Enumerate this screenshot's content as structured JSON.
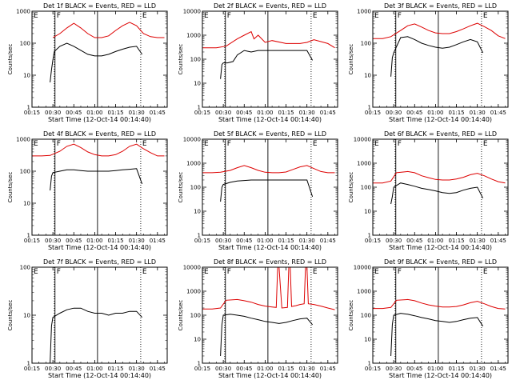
{
  "chart_data": [
    {
      "type": "line",
      "title": "Det 1f BLACK = Events, RED = LLD",
      "xlabel": "Start Time (12-Oct-14 00:14:40)",
      "ylabel": "Counts/sec",
      "yscale": "log",
      "ylim": [
        1,
        1000
      ],
      "yticks": [
        "1",
        "10",
        "100",
        "1000"
      ],
      "xlim": [
        "00:15",
        "01:52"
      ],
      "xticks": [
        "00:15",
        "00:30",
        "00:45",
        "01:00",
        "01:15",
        "01:30",
        "01:45"
      ],
      "markers": [
        "E",
        "F",
        "E"
      ],
      "series": [
        {
          "color": "#000000",
          "x": [
            "00:28",
            "00:29",
            "00:30",
            "00:31",
            "00:35",
            "00:40",
            "00:45",
            "00:50",
            "00:55",
            "01:00",
            "01:05",
            "01:10",
            "01:15",
            "01:20",
            "01:25",
            "01:30",
            "01:34"
          ],
          "y": [
            6,
            15,
            30,
            55,
            80,
            100,
            80,
            60,
            45,
            40,
            40,
            45,
            55,
            65,
            75,
            80,
            45
          ]
        },
        {
          "color": "#dd0000",
          "x": [
            "00:30",
            "00:35",
            "00:40",
            "00:45",
            "00:50",
            "00:55",
            "01:00",
            "01:05",
            "01:10",
            "01:15",
            "01:20",
            "01:25",
            "01:30",
            "01:35",
            "01:40",
            "01:45",
            "01:50"
          ],
          "y": [
            150,
            200,
            300,
            420,
            300,
            200,
            150,
            150,
            170,
            250,
            350,
            450,
            350,
            200,
            160,
            150,
            150
          ]
        }
      ]
    },
    {
      "type": "line",
      "title": "Det 2f BLACK = Events, RED = LLD",
      "xlabel": "Start Time (12-Oct-14 00:14:40)",
      "ylabel": "Counts/sec",
      "yscale": "log",
      "ylim": [
        1,
        10000
      ],
      "yticks": [
        "1",
        "10",
        "100",
        "1000",
        "10000"
      ],
      "xlim": [
        "00:15",
        "01:52"
      ],
      "xticks": [
        "00:15",
        "00:30",
        "00:45",
        "01:00",
        "01:15",
        "01:30",
        "01:45"
      ],
      "markers": [
        "E",
        "F",
        "E"
      ],
      "series": [
        {
          "color": "#000000",
          "x": [
            "00:28",
            "00:29",
            "00:30",
            "00:33",
            "00:37",
            "00:40",
            "00:45",
            "00:50",
            "00:55",
            "01:00",
            "01:10",
            "01:20",
            "01:25",
            "01:30",
            "01:34"
          ],
          "y": [
            15,
            60,
            70,
            70,
            80,
            150,
            230,
            200,
            230,
            230,
            230,
            230,
            230,
            230,
            90
          ]
        },
        {
          "color": "#dd0000",
          "x": [
            "00:15",
            "00:25",
            "00:32",
            "00:40",
            "00:45",
            "00:50",
            "00:52",
            "00:55",
            "01:00",
            "01:05",
            "01:15",
            "01:25",
            "01:30",
            "01:35",
            "01:45",
            "01:50"
          ],
          "y": [
            300,
            300,
            350,
            700,
            1000,
            1400,
            700,
            1000,
            500,
            600,
            450,
            450,
            500,
            650,
            450,
            300
          ]
        }
      ]
    },
    {
      "type": "line",
      "title": "Det 3f BLACK = Events, RED = LLD",
      "xlabel": "Start Time (12-Oct-14 00:14:40)",
      "ylabel": "Counts/sec",
      "yscale": "log",
      "ylim": [
        1,
        1000
      ],
      "yticks": [
        "1",
        "10",
        "100",
        "1000"
      ],
      "xlim": [
        "00:15",
        "01:52"
      ],
      "xticks": [
        "00:15",
        "00:30",
        "00:45",
        "01:00",
        "01:15",
        "01:30",
        "01:45"
      ],
      "markers": [
        "E",
        "F",
        "E"
      ],
      "series": [
        {
          "color": "#000000",
          "x": [
            "00:28",
            "00:29",
            "00:30",
            "00:35",
            "00:40",
            "00:45",
            "00:50",
            "00:55",
            "01:00",
            "01:05",
            "01:10",
            "01:15",
            "01:20",
            "01:25",
            "01:30",
            "01:34"
          ],
          "y": [
            9,
            35,
            50,
            150,
            160,
            130,
            100,
            85,
            75,
            70,
            75,
            90,
            110,
            130,
            110,
            50
          ]
        },
        {
          "color": "#dd0000",
          "x": [
            "00:15",
            "00:22",
            "00:28",
            "00:35",
            "00:40",
            "00:45",
            "00:50",
            "00:55",
            "01:00",
            "01:05",
            "01:10",
            "01:15",
            "01:20",
            "01:25",
            "01:30",
            "01:35",
            "01:40",
            "01:45",
            "01:50"
          ],
          "y": [
            140,
            140,
            160,
            250,
            350,
            400,
            320,
            250,
            210,
            200,
            200,
            230,
            280,
            350,
            420,
            330,
            250,
            170,
            140
          ]
        }
      ]
    },
    {
      "type": "line",
      "title": "Det 4f BLACK = Events, RED = LLD",
      "xlabel": "Start Time (12-Oct-14 00:14:40)",
      "ylabel": "Counts/sec",
      "yscale": "log",
      "ylim": [
        1,
        1000
      ],
      "yticks": [
        "1",
        "10",
        "100",
        "1000"
      ],
      "xlim": [
        "00:15",
        "01:52"
      ],
      "xticks": [
        "00:15",
        "00:30",
        "00:45",
        "01:00",
        "01:15",
        "01:30",
        "01:45"
      ],
      "markers": [
        "E",
        "F",
        "E"
      ],
      "series": [
        {
          "color": "#000000",
          "x": [
            "00:28",
            "00:29",
            "00:30",
            "00:35",
            "00:40",
            "00:45",
            "00:50",
            "00:55",
            "01:00",
            "01:05",
            "01:10",
            "01:15",
            "01:20",
            "01:25",
            "01:30",
            "01:34"
          ],
          "y": [
            25,
            70,
            90,
            100,
            110,
            110,
            105,
            100,
            100,
            100,
            100,
            105,
            110,
            115,
            120,
            40
          ]
        },
        {
          "color": "#dd0000",
          "x": [
            "00:15",
            "00:22",
            "00:28",
            "00:35",
            "00:40",
            "00:45",
            "00:50",
            "00:55",
            "01:00",
            "01:05",
            "01:10",
            "01:15",
            "01:20",
            "01:25",
            "01:30",
            "01:35",
            "01:40",
            "01:45",
            "01:50"
          ],
          "y": [
            300,
            300,
            310,
            420,
            600,
            700,
            550,
            400,
            330,
            300,
            300,
            330,
            420,
            600,
            700,
            500,
            380,
            300,
            300
          ]
        }
      ]
    },
    {
      "type": "line",
      "title": "Det 5f BLACK = Events, RED = LLD",
      "xlabel": "Start Time (12-Oct-14 00:14:40)",
      "ylabel": "Counts/sec",
      "yscale": "log",
      "ylim": [
        1,
        10000
      ],
      "yticks": [
        "1",
        "10",
        "100",
        "1000",
        "10000"
      ],
      "xlim": [
        "00:15",
        "01:52"
      ],
      "xticks": [
        "00:15",
        "00:30",
        "00:45",
        "01:00",
        "01:15",
        "01:30",
        "01:45"
      ],
      "markers": [
        "E",
        "F",
        "E"
      ],
      "series": [
        {
          "color": "#000000",
          "x": [
            "00:28",
            "00:29",
            "00:30",
            "00:35",
            "00:40",
            "00:45",
            "00:50",
            "00:55",
            "01:00",
            "01:05",
            "01:10",
            "01:15",
            "01:20",
            "01:25",
            "01:30",
            "01:34"
          ],
          "y": [
            25,
            100,
            130,
            160,
            180,
            190,
            200,
            200,
            200,
            200,
            200,
            200,
            200,
            200,
            200,
            40
          ]
        },
        {
          "color": "#dd0000",
          "x": [
            "00:15",
            "00:22",
            "00:28",
            "00:35",
            "00:40",
            "00:45",
            "00:50",
            "00:55",
            "01:00",
            "01:05",
            "01:10",
            "01:15",
            "01:20",
            "01:25",
            "01:30",
            "01:35",
            "01:40",
            "01:45",
            "01:50"
          ],
          "y": [
            400,
            400,
            420,
            500,
            650,
            800,
            650,
            500,
            420,
            400,
            400,
            430,
            550,
            700,
            800,
            600,
            450,
            400,
            400
          ]
        }
      ]
    },
    {
      "type": "line",
      "title": "Det 6f BLACK = Events, RED = LLD",
      "xlabel": "Start Time (12-Oct-14 00:14:40)",
      "ylabel": "Counts/sec",
      "yscale": "log",
      "ylim": [
        1,
        10000
      ],
      "yticks": [
        "1",
        "10",
        "100",
        "1000",
        "10000"
      ],
      "xlim": [
        "00:15",
        "01:52"
      ],
      "xticks": [
        "00:15",
        "00:30",
        "00:45",
        "01:00",
        "01:15",
        "01:30",
        "01:45"
      ],
      "markers": [
        "E",
        "F",
        "E"
      ],
      "series": [
        {
          "color": "#000000",
          "x": [
            "00:28",
            "00:29",
            "00:30",
            "00:35",
            "00:40",
            "00:45",
            "00:50",
            "00:55",
            "01:00",
            "01:05",
            "01:10",
            "01:15",
            "01:20",
            "01:25",
            "01:30",
            "01:34"
          ],
          "y": [
            20,
            40,
            100,
            150,
            130,
            110,
            90,
            80,
            70,
            60,
            55,
            60,
            75,
            90,
            100,
            35
          ]
        },
        {
          "color": "#dd0000",
          "x": [
            "00:15",
            "00:22",
            "00:28",
            "00:32",
            "00:40",
            "00:45",
            "00:50",
            "00:55",
            "01:00",
            "01:05",
            "01:10",
            "01:15",
            "01:20",
            "01:25",
            "01:30",
            "01:35",
            "01:40",
            "01:45",
            "01:50"
          ],
          "y": [
            150,
            150,
            180,
            400,
            450,
            400,
            300,
            250,
            210,
            200,
            200,
            220,
            260,
            330,
            380,
            300,
            220,
            170,
            150
          ]
        }
      ]
    },
    {
      "type": "line",
      "title": "Det 7f BLACK = Events, RED = LLD",
      "xlabel": "Start Time (12-Oct-14 00:14:40)",
      "ylabel": "Counts/sec",
      "yscale": "log",
      "ylim": [
        1,
        100
      ],
      "yticks": [
        "1",
        "10",
        "100"
      ],
      "xlim": [
        "00:15",
        "01:52"
      ],
      "xticks": [
        "00:15",
        "00:30",
        "00:45",
        "01:00",
        "01:15",
        "01:30",
        "01:45"
      ],
      "markers": [
        "E",
        "F",
        "E"
      ],
      "series": [
        {
          "color": "#000000",
          "x": [
            "00:28",
            "00:29",
            "00:30",
            "00:35",
            "00:40",
            "00:45",
            "00:50",
            "00:55",
            "01:00",
            "01:05",
            "01:10",
            "01:15",
            "01:20",
            "01:25",
            "01:30",
            "01:34"
          ],
          "y": [
            1,
            6,
            9,
            11,
            13,
            14,
            14,
            12,
            11,
            11,
            10,
            11,
            11,
            12,
            12,
            9
          ]
        }
      ]
    },
    {
      "type": "line",
      "title": "Det 8f BLACK = Events, RED = LLD",
      "xlabel": "Start Time (12-Oct-14 00:14:40)",
      "ylabel": "Counts/sec",
      "yscale": "log",
      "ylim": [
        1,
        10000
      ],
      "yticks": [
        "1",
        "10",
        "100",
        "1000",
        "10000"
      ],
      "xlim": [
        "00:15",
        "01:52"
      ],
      "xticks": [
        "00:15",
        "00:30",
        "00:45",
        "01:00",
        "01:15",
        "01:30",
        "01:45"
      ],
      "markers": [
        "E",
        "F",
        "E"
      ],
      "series": [
        {
          "color": "#000000",
          "x": [
            "00:28",
            "00:29",
            "00:30",
            "00:35",
            "00:40",
            "00:45",
            "00:50",
            "00:55",
            "01:00",
            "01:05",
            "01:10",
            "01:15",
            "01:20",
            "01:25",
            "01:30",
            "01:34"
          ],
          "y": [
            2,
            40,
            100,
            110,
            100,
            90,
            75,
            65,
            55,
            50,
            45,
            50,
            60,
            70,
            75,
            40
          ]
        },
        {
          "color": "#dd0000",
          "x": [
            "00:15",
            "00:22",
            "00:28",
            "00:32",
            "00:40",
            "00:45",
            "00:50",
            "00:55",
            "01:00",
            "01:05",
            "01:08",
            "01:09",
            "01:10",
            "01:12",
            "01:16",
            "01:17",
            "01:18",
            "01:19",
            "01:22",
            "01:25",
            "01:28",
            "01:29",
            "01:30",
            "01:31",
            "01:35",
            "01:40",
            "01:45",
            "01:50"
          ],
          "y": [
            180,
            180,
            200,
            420,
            450,
            400,
            350,
            280,
            240,
            220,
            210,
            10000,
            10000,
            200,
            210,
            10000,
            10000,
            230,
            250,
            280,
            300,
            10000,
            10000,
            300,
            280,
            240,
            200,
            170
          ]
        }
      ]
    },
    {
      "type": "line",
      "title": "Det 9f BLACK = Events, RED = LLD",
      "xlabel": "Start Time (12-Oct-14 00:14:40)",
      "ylabel": "Counts/sec",
      "yscale": "log",
      "ylim": [
        1,
        10000
      ],
      "yticks": [
        "1",
        "10",
        "100",
        "1000",
        "10000"
      ],
      "xlim": [
        "00:15",
        "01:52"
      ],
      "xticks": [
        "00:15",
        "00:30",
        "00:45",
        "01:00",
        "01:15",
        "01:30",
        "01:45"
      ],
      "markers": [
        "E",
        "F",
        "E"
      ],
      "series": [
        {
          "color": "#000000",
          "x": [
            "00:28",
            "00:29",
            "00:30",
            "00:35",
            "00:40",
            "00:45",
            "00:50",
            "00:55",
            "01:00",
            "01:05",
            "01:10",
            "01:15",
            "01:20",
            "01:25",
            "01:30",
            "01:34"
          ],
          "y": [
            2,
            40,
            100,
            120,
            110,
            95,
            80,
            70,
            60,
            55,
            50,
            55,
            65,
            75,
            80,
            35
          ]
        },
        {
          "color": "#dd0000",
          "x": [
            "00:15",
            "00:22",
            "00:28",
            "00:32",
            "00:40",
            "00:45",
            "00:50",
            "00:55",
            "01:00",
            "01:05",
            "01:10",
            "01:15",
            "01:20",
            "01:25",
            "01:30",
            "01:35",
            "01:40",
            "01:45",
            "01:50"
          ],
          "y": [
            190,
            190,
            210,
            420,
            450,
            400,
            320,
            270,
            240,
            220,
            220,
            230,
            270,
            330,
            380,
            300,
            230,
            190,
            180
          ]
        }
      ]
    }
  ]
}
